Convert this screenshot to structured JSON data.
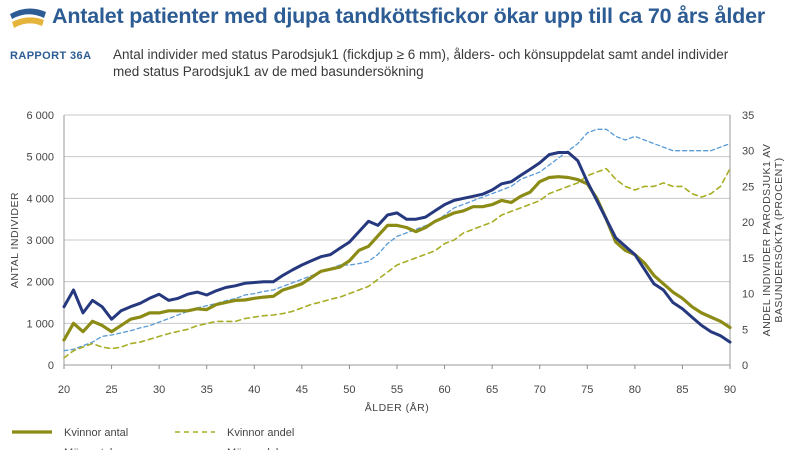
{
  "header": {
    "title": "Antalet patienter med djupa tandköttsfickor ökar upp till ca 70 års ålder",
    "report_label": "RAPPORT 36A",
    "subtitle": "Antal individer med status Parodsjuk1 (fickdjup ≥ 6 mm), ålders- och könsuppdelat samt andel individer med status Parodsjuk1 av de med basundersökning",
    "logo_icon": "report-logo-icon"
  },
  "colors": {
    "women": "#8b8b16",
    "women_share": "#a8ad24",
    "men": "#26397f",
    "men_share": "#5b9bd5",
    "grid": "#c8c8c8",
    "logo_blue": "#2c5c93",
    "logo_gold": "#e5b43a"
  },
  "chart_data": {
    "type": "line",
    "xlabel": "ÅLDER (ÅR)",
    "ylabel": "ANTAL INDIVIDER",
    "y2label": "ANDEL INDIVIDER PARODSJUK1 AV BASUNDERSÖKTA (PROCENT)",
    "xlim": [
      20,
      90
    ],
    "ylim": [
      0,
      6000
    ],
    "y2lim": [
      0,
      35
    ],
    "grid": "horizontal",
    "legend_position": "bottom",
    "x_ticks": [
      "20",
      "25",
      "30",
      "35",
      "40",
      "45",
      "50",
      "55",
      "60",
      "65",
      "70",
      "75",
      "80",
      "85",
      "90"
    ],
    "y_ticks": [
      "0",
      "1 000",
      "2 000",
      "3 000",
      "4 000",
      "5 000",
      "6 000"
    ],
    "y2_ticks": [
      "0",
      "5",
      "10",
      "15",
      "20",
      "25",
      "30",
      "35"
    ],
    "x": [
      20,
      21,
      22,
      23,
      24,
      25,
      26,
      27,
      28,
      29,
      30,
      31,
      32,
      33,
      34,
      35,
      36,
      37,
      38,
      39,
      40,
      41,
      42,
      43,
      44,
      45,
      46,
      47,
      48,
      49,
      50,
      51,
      52,
      53,
      54,
      55,
      56,
      57,
      58,
      59,
      60,
      61,
      62,
      63,
      64,
      65,
      66,
      67,
      68,
      69,
      70,
      71,
      72,
      73,
      74,
      75,
      76,
      77,
      78,
      79,
      80,
      81,
      82,
      83,
      84,
      85,
      86,
      87,
      88,
      89,
      90
    ],
    "series": [
      {
        "name": "Kvinnor antal",
        "axis": "left",
        "style": "solid-thick",
        "values": [
          600,
          1000,
          800,
          1050,
          950,
          800,
          950,
          1100,
          1150,
          1250,
          1250,
          1300,
          1300,
          1300,
          1350,
          1330,
          1450,
          1500,
          1550,
          1560,
          1600,
          1630,
          1650,
          1800,
          1870,
          1950,
          2100,
          2250,
          2300,
          2350,
          2500,
          2750,
          2850,
          3100,
          3350,
          3350,
          3300,
          3200,
          3300,
          3450,
          3550,
          3650,
          3700,
          3800,
          3800,
          3850,
          3950,
          3900,
          4050,
          4150,
          4400,
          4500,
          4520,
          4500,
          4450,
          4350,
          4000,
          3500,
          2950,
          2750,
          2650,
          2450,
          2150,
          1950,
          1750,
          1600,
          1400,
          1250,
          1150,
          1050,
          900
        ]
      },
      {
        "name": "Kvinnor andel",
        "axis": "right",
        "style": "dashed",
        "values": [
          1,
          2,
          2.5,
          3,
          2.5,
          2.3,
          2.5,
          3,
          3.2,
          3.6,
          4,
          4.4,
          4.7,
          5,
          5.5,
          5.8,
          6.1,
          6.1,
          6.1,
          6.5,
          6.7,
          6.9,
          7,
          7.2,
          7.5,
          8,
          8.5,
          8.8,
          9.2,
          9.5,
          10,
          10.5,
          11,
          12,
          13,
          14,
          14.5,
          15,
          15.5,
          16,
          17,
          17.5,
          18.5,
          19,
          19.5,
          20,
          21,
          21.5,
          22,
          22.5,
          23,
          24,
          24.5,
          25,
          25.5,
          26.5,
          27,
          27.5,
          26,
          25,
          24.5,
          25,
          25,
          25.5,
          25,
          25,
          24,
          23.5,
          24,
          25,
          27.5
        ]
      },
      {
        "name": "Män antal",
        "axis": "left",
        "style": "solid-thick",
        "values": [
          1400,
          1800,
          1250,
          1550,
          1400,
          1100,
          1300,
          1400,
          1480,
          1600,
          1700,
          1550,
          1600,
          1700,
          1750,
          1680,
          1780,
          1860,
          1900,
          1960,
          1980,
          2000,
          2000,
          2150,
          2280,
          2400,
          2500,
          2600,
          2650,
          2800,
          2950,
          3200,
          3450,
          3350,
          3600,
          3650,
          3500,
          3500,
          3550,
          3700,
          3850,
          3950,
          4000,
          4050,
          4100,
          4200,
          4350,
          4400,
          4550,
          4700,
          4850,
          5050,
          5100,
          5100,
          4900,
          4400,
          3950,
          3500,
          3050,
          2850,
          2650,
          2300,
          1950,
          1800,
          1500,
          1350,
          1150,
          950,
          800,
          700,
          550
        ]
      },
      {
        "name": "Män andel",
        "axis": "right",
        "style": "dashed-thin",
        "values": [
          2,
          2.2,
          2.7,
          3.2,
          4,
          4.2,
          4.5,
          4.8,
          5.2,
          5.5,
          6,
          6.5,
          7,
          7.5,
          8,
          8.3,
          8.6,
          9,
          9.3,
          9.8,
          10,
          10.3,
          10.5,
          11,
          11.5,
          12,
          12.5,
          13,
          13.5,
          14,
          14,
          14.2,
          14.5,
          15.5,
          17,
          18,
          18.5,
          19,
          19.5,
          20,
          21,
          22,
          22.5,
          23,
          23.5,
          24,
          24.5,
          25,
          26,
          26.5,
          27,
          28,
          29,
          30,
          31,
          32.5,
          33,
          33,
          32,
          31.5,
          32,
          31.5,
          31,
          30.5,
          30,
          30,
          30,
          30,
          30,
          30.5,
          31
        ]
      }
    ],
    "legend": [
      "Kvinnor antal",
      "Kvinnor andel",
      "Män antal",
      "Män andel"
    ]
  }
}
